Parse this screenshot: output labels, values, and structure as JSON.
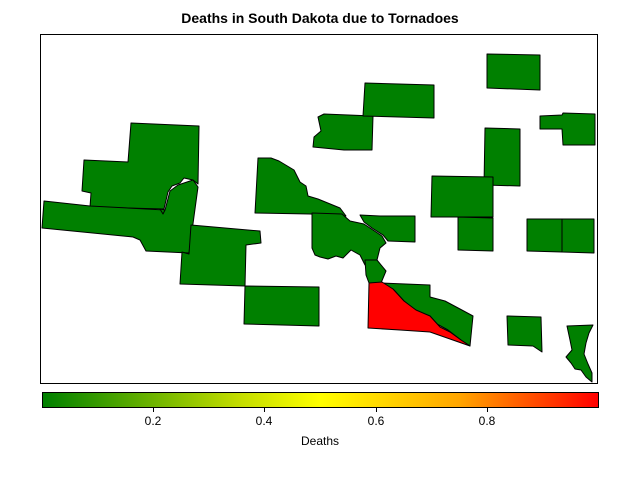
{
  "title": "Deaths in South Dakota due to Tornadoes",
  "legend": {
    "label": "Deaths",
    "ticks": [
      "0.2",
      "0.4",
      "0.6",
      "0.8"
    ],
    "colors": [
      "#008000",
      "#c2dc00",
      "#ffff00",
      "#ffa500",
      "#ff0000"
    ]
  },
  "chart_data": {
    "type": "choropleth",
    "value_range": [
      0,
      1
    ],
    "counties": [
      {
        "id": "c1",
        "value": 0
      },
      {
        "id": "c2",
        "value": 0
      },
      {
        "id": "c3",
        "value": 0
      },
      {
        "id": "c4",
        "value": 0
      },
      {
        "id": "c5",
        "value": 0
      },
      {
        "id": "c6",
        "value": 0
      },
      {
        "id": "c7",
        "value": 0
      },
      {
        "id": "c8",
        "value": 0
      },
      {
        "id": "c9",
        "value": 1
      },
      {
        "id": "c10",
        "value": 0
      },
      {
        "id": "c11",
        "value": 0
      },
      {
        "id": "c12",
        "value": 0
      },
      {
        "id": "c13",
        "value": 0
      },
      {
        "id": "c14",
        "value": 0
      },
      {
        "id": "c15",
        "value": 0
      },
      {
        "id": "c16",
        "value": 0
      },
      {
        "id": "c17",
        "value": 0
      },
      {
        "id": "c18",
        "value": 0
      },
      {
        "id": "c19",
        "value": 0
      },
      {
        "id": "c20",
        "value": 0
      },
      {
        "id": "c21",
        "value": 0
      }
    ]
  }
}
